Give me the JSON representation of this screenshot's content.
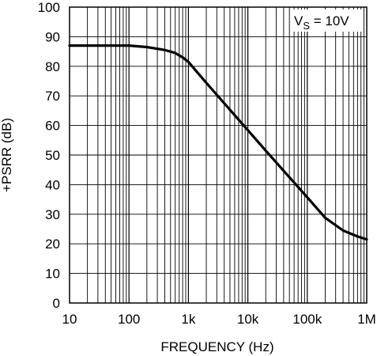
{
  "chart_data": {
    "type": "line",
    "xscale": "log",
    "xlim": [
      10,
      1000000
    ],
    "ylim": [
      0,
      100
    ],
    "xlabel": "FREQUENCY (Hz)",
    "ylabel": "+PSRR (dB)",
    "x_tick_values": [
      10,
      100,
      1000,
      10000,
      100000,
      1000000
    ],
    "x_tick_labels": [
      "10",
      "100",
      "1k",
      "10k",
      "100k",
      "1M"
    ],
    "y_tick_values": [
      0,
      10,
      20,
      30,
      40,
      50,
      60,
      70,
      80,
      90,
      100
    ],
    "y_tick_labels": [
      "0",
      "10",
      "20",
      "30",
      "40",
      "50",
      "60",
      "70",
      "80",
      "90",
      "100"
    ],
    "grid": true,
    "annotation": {
      "main": "V",
      "sub": "S",
      "rest": " = 10V"
    },
    "series": [
      {
        "x": [
          10,
          20,
          50,
          100,
          200,
          400,
          600,
          800,
          1000,
          1300,
          2000,
          5000,
          10000,
          20000,
          50000,
          100000,
          200000,
          400000,
          700000,
          1000000
        ],
        "y": [
          87,
          87,
          87,
          87,
          86.5,
          85.5,
          84.5,
          83,
          81.5,
          78.8,
          74.4,
          65.3,
          58.4,
          51.5,
          42.5,
          35.7,
          28.8,
          24.5,
          22.5,
          21.5
        ]
      }
    ]
  }
}
